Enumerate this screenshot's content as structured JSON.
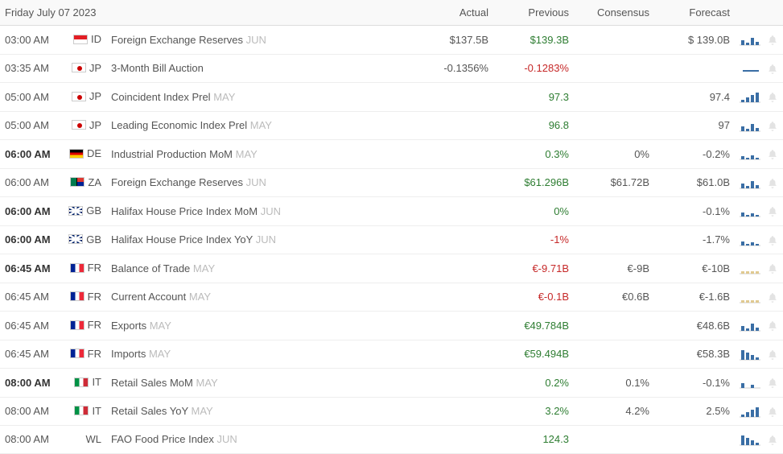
{
  "header": {
    "date": "Friday July 07 2023",
    "cols": [
      "Actual",
      "Previous",
      "Consensus",
      "Forecast"
    ]
  },
  "chartColors": {
    "blue": "#3a6ea5",
    "tan": "#e0c990"
  },
  "rows": [
    {
      "time": "03:00 AM",
      "bold": false,
      "country": "ID",
      "event": "Foreign Exchange Reserves",
      "period": "JUN",
      "actual": "$137.5B",
      "previous": "$139.3B",
      "prevColor": "green",
      "consensus": "",
      "forecast": "$ 139.0B",
      "chart": "bars_alt",
      "chartColor": "blue"
    },
    {
      "time": "03:35 AM",
      "bold": false,
      "country": "JP",
      "event": "3-Month Bill Auction",
      "period": "",
      "actual": "-0.1356%",
      "previous": "-0.1283%",
      "prevColor": "red",
      "consensus": "",
      "forecast": "",
      "chart": "line",
      "chartColor": "blue"
    },
    {
      "time": "05:00 AM",
      "bold": false,
      "country": "JP",
      "event": "Coincident Index Prel",
      "period": "MAY",
      "actual": "",
      "previous": "97.3",
      "prevColor": "green",
      "consensus": "",
      "forecast": "97.4",
      "chart": "bars_asc",
      "chartColor": "blue"
    },
    {
      "time": "05:00 AM",
      "bold": false,
      "country": "JP",
      "event": "Leading Economic Index Prel",
      "period": "MAY",
      "actual": "",
      "previous": "96.8",
      "prevColor": "green",
      "consensus": "",
      "forecast": "97",
      "chart": "bars_alt",
      "chartColor": "blue"
    },
    {
      "time": "06:00 AM",
      "bold": true,
      "country": "DE",
      "event": "Industrial Production MoM",
      "period": "MAY",
      "actual": "",
      "previous": "0.3%",
      "prevColor": "green",
      "consensus": "0%",
      "forecast": "-0.2%",
      "chart": "bars_tiny",
      "chartColor": "blue"
    },
    {
      "time": "06:00 AM",
      "bold": false,
      "country": "ZA",
      "event": "Foreign Exchange Reserves",
      "period": "JUN",
      "actual": "",
      "previous": "$61.296B",
      "prevColor": "green",
      "consensus": "$61.72B",
      "forecast": "$61.0B",
      "chart": "bars_alt",
      "chartColor": "blue"
    },
    {
      "time": "06:00 AM",
      "bold": true,
      "country": "GB",
      "event": "Halifax House Price Index MoM",
      "period": "JUN",
      "actual": "",
      "previous": "0%",
      "prevColor": "green",
      "consensus": "",
      "forecast": "-0.1%",
      "chart": "bars_low",
      "chartColor": "blue"
    },
    {
      "time": "06:00 AM",
      "bold": true,
      "country": "GB",
      "event": "Halifax House Price Index YoY",
      "period": "JUN",
      "actual": "",
      "previous": "-1%",
      "prevColor": "red",
      "consensus": "",
      "forecast": "-1.7%",
      "chart": "bars_low",
      "chartColor": "blue"
    },
    {
      "time": "06:45 AM",
      "bold": true,
      "country": "FR",
      "event": "Balance of Trade",
      "period": "MAY",
      "actual": "",
      "previous": "€-9.71B",
      "prevColor": "red",
      "consensus": "€-9B",
      "forecast": "€-10B",
      "chart": "bars_flat",
      "chartColor": "tan"
    },
    {
      "time": "06:45 AM",
      "bold": false,
      "country": "FR",
      "event": "Current Account",
      "period": "MAY",
      "actual": "",
      "previous": "€-0.1B",
      "prevColor": "red",
      "consensus": "€0.6B",
      "forecast": "€-1.6B",
      "chart": "bars_flat",
      "chartColor": "tan"
    },
    {
      "time": "06:45 AM",
      "bold": false,
      "country": "FR",
      "event": "Exports",
      "period": "MAY",
      "actual": "",
      "previous": "€49.784B",
      "prevColor": "green",
      "consensus": "",
      "forecast": "€48.6B",
      "chart": "bars_alt",
      "chartColor": "blue"
    },
    {
      "time": "06:45 AM",
      "bold": false,
      "country": "FR",
      "event": "Imports",
      "period": "MAY",
      "actual": "",
      "previous": "€59.494B",
      "prevColor": "green",
      "consensus": "",
      "forecast": "€58.3B",
      "chart": "bars_desc",
      "chartColor": "blue"
    },
    {
      "time": "08:00 AM",
      "bold": true,
      "country": "IT",
      "event": "Retail Sales MoM",
      "period": "MAY",
      "actual": "",
      "previous": "0.2%",
      "prevColor": "green",
      "consensus": "0.1%",
      "forecast": "-0.1%",
      "chart": "bars_sparse",
      "chartColor": "blue"
    },
    {
      "time": "08:00 AM",
      "bold": false,
      "country": "IT",
      "event": "Retail Sales YoY",
      "period": "MAY",
      "actual": "",
      "previous": "3.2%",
      "prevColor": "green",
      "consensus": "4.2%",
      "forecast": "2.5%",
      "chart": "bars_asc",
      "chartColor": "blue"
    },
    {
      "time": "08:00 AM",
      "bold": false,
      "country": "WL",
      "event": "FAO Food Price Index",
      "period": "JUN",
      "actual": "",
      "previous": "124.3",
      "prevColor": "green",
      "consensus": "",
      "forecast": "",
      "chart": "bars_desc",
      "chartColor": "blue"
    }
  ],
  "chartShapes": {
    "bars_alt": [
      6,
      3,
      9,
      4
    ],
    "bars_asc": [
      3,
      6,
      9,
      12
    ],
    "bars_desc": [
      12,
      9,
      6,
      3
    ],
    "bars_tiny": [
      4,
      2,
      5,
      2
    ],
    "bars_low": [
      5,
      2,
      4,
      2
    ],
    "bars_flat": [
      3,
      3,
      3,
      3
    ],
    "bars_sparse": [
      6,
      0,
      4,
      0
    ],
    "line": "line"
  }
}
